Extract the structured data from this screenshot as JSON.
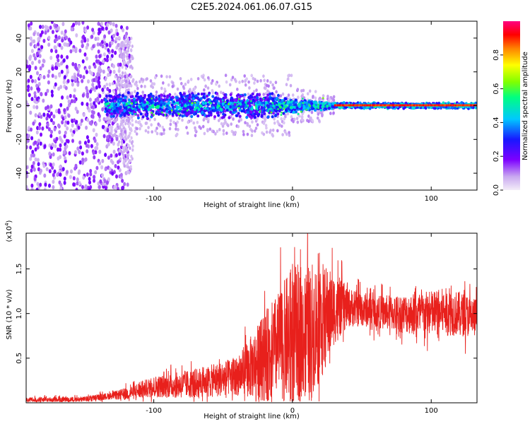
{
  "title": "C2E5.2024.061.06.07.G15",
  "chart_data": [
    {
      "type": "heatmap",
      "title": "C2E5.2024.061.06.07.G15",
      "xlabel": "Height of straight line (km)",
      "ylabel": "Frequency (Hz)",
      "xlim": [
        -192,
        133
      ],
      "ylim": [
        -50,
        50
      ],
      "x_ticks": [
        -100,
        0,
        100
      ],
      "y_ticks": [
        -40,
        -20,
        0,
        20,
        40
      ],
      "colorbar": {
        "label": "Normalized spectral amplitude",
        "ticks": [
          0.0,
          0.2,
          0.4,
          0.6,
          0.8
        ],
        "range": [
          0,
          1
        ],
        "colormap": [
          "#f0e8f8",
          "#c9a8f0",
          "#7d00ff",
          "#1010ff",
          "#00c8ff",
          "#00ff80",
          "#80ff00",
          "#ffff00",
          "#ff8000",
          "#ff0000",
          "#ff0080"
        ]
      },
      "regions": [
        {
          "x": [
            -192,
            -130
          ],
          "freq_spread": 50,
          "amplitude": 0.12,
          "description_level": "noise"
        },
        {
          "x": [
            -130,
            -10
          ],
          "freq_spread": 8,
          "amplitude": 0.25,
          "description_level": "blue band"
        },
        {
          "x": [
            -10,
            30
          ],
          "freq_spread": 4,
          "amplitude": 0.35,
          "description_level": "narrowing band"
        },
        {
          "x": [
            30,
            133
          ],
          "freq_spread": 1,
          "amplitude": 0.9,
          "description_level": "strong line at 0 Hz"
        }
      ],
      "grid": false
    },
    {
      "type": "line",
      "xlabel": "Height of straight line (km)",
      "ylabel": "SNR (10 * v/v)",
      "y_multiplier_label": "(x10",
      "y_multiplier_exp": "4",
      "y_multiplier_close": ")",
      "xlim": [
        -192,
        133
      ],
      "ylim": [
        0,
        19000
      ],
      "x_ticks": [
        -100,
        0,
        100
      ],
      "y_ticks": [
        0.5,
        1.0,
        1.5
      ],
      "y_tick_labels": [
        "0.5",
        "1.0",
        "1.5"
      ],
      "color": "#e8201c",
      "series": [
        {
          "envelope_x": [
            -192,
            -150,
            -130,
            -120,
            -100,
            -80,
            -60,
            -40,
            -30,
            -20,
            -10,
            0,
            10,
            20,
            30,
            40,
            50,
            60,
            80,
            100,
            110,
            120,
            133
          ],
          "envelope_mean": [
            300,
            400,
            800,
            1000,
            1800,
            2000,
            2400,
            3000,
            4000,
            5200,
            6500,
            7500,
            8000,
            9000,
            10500,
            10700,
            10500,
            10200,
            10000,
            10000,
            10200,
            10000,
            9500
          ],
          "envelope_amp": [
            300,
            300,
            400,
            700,
            1200,
            1500,
            1800,
            2200,
            3500,
            5000,
            6000,
            8000,
            7500,
            7000,
            4000,
            2200,
            2000,
            1800,
            2200,
            2600,
            2700,
            2500,
            2300
          ]
        }
      ],
      "grid": false
    }
  ]
}
